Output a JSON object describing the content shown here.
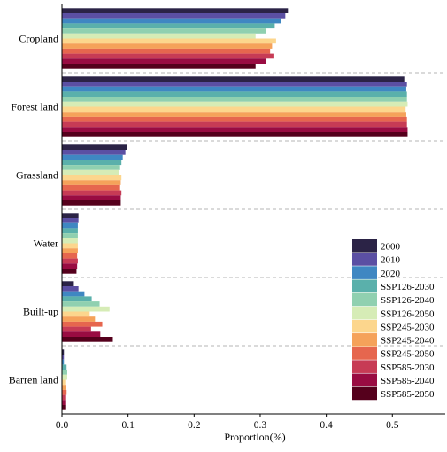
{
  "chart_data": {
    "type": "bar",
    "orientation": "horizontal",
    "xlabel": "Proportion(%)",
    "ylabel": "",
    "title": "",
    "xlim": [
      0,
      0.58
    ],
    "xticks": [
      0.0,
      0.1,
      0.2,
      0.3,
      0.4,
      0.5
    ],
    "xtick_labels": [
      "0.0",
      "0.1",
      "0.2",
      "0.3",
      "0.4",
      "0.5"
    ],
    "grid": false,
    "category_separators": "dashed",
    "legend_position": "lower-right",
    "categories": [
      "Cropland",
      "Forest land",
      "Grassland",
      "Water",
      "Built-up",
      "Barren land"
    ],
    "series": [
      {
        "name": "2000",
        "color": "#2b2346",
        "values": [
          0.342,
          0.518,
          0.098,
          0.025,
          0.018,
          0.003
        ]
      },
      {
        "name": "2010",
        "color": "#5b4fa3",
        "values": [
          0.338,
          0.522,
          0.096,
          0.025,
          0.025,
          0.003
        ]
      },
      {
        "name": "2020",
        "color": "#3f87c2",
        "values": [
          0.331,
          0.521,
          0.092,
          0.024,
          0.034,
          0.003
        ]
      },
      {
        "name": "SSP126-2030",
        "color": "#5ab0ab",
        "values": [
          0.322,
          0.522,
          0.09,
          0.024,
          0.045,
          0.007
        ]
      },
      {
        "name": "SSP126-2040",
        "color": "#90d0b0",
        "values": [
          0.309,
          0.522,
          0.088,
          0.024,
          0.057,
          0.008
        ]
      },
      {
        "name": "SSP126-2050",
        "color": "#d6ecb6",
        "values": [
          0.293,
          0.523,
          0.086,
          0.024,
          0.072,
          0.008
        ]
      },
      {
        "name": "SSP245-2030",
        "color": "#fcd68d",
        "values": [
          0.324,
          0.52,
          0.09,
          0.024,
          0.042,
          0.005
        ]
      },
      {
        "name": "SSP245-2040",
        "color": "#f5a25a",
        "values": [
          0.318,
          0.521,
          0.089,
          0.024,
          0.05,
          0.006
        ]
      },
      {
        "name": "SSP245-2050",
        "color": "#e6664e",
        "values": [
          0.315,
          0.522,
          0.088,
          0.023,
          0.061,
          0.007
        ]
      },
      {
        "name": "SSP585-2030",
        "color": "#c73b55",
        "values": [
          0.32,
          0.522,
          0.09,
          0.024,
          0.044,
          0.005
        ]
      },
      {
        "name": "SSP585-2040",
        "color": "#990c42",
        "values": [
          0.309,
          0.523,
          0.089,
          0.023,
          0.058,
          0.005
        ]
      },
      {
        "name": "SSP585-2050",
        "color": "#55001c",
        "values": [
          0.293,
          0.523,
          0.089,
          0.022,
          0.077,
          0.005
        ]
      }
    ]
  }
}
